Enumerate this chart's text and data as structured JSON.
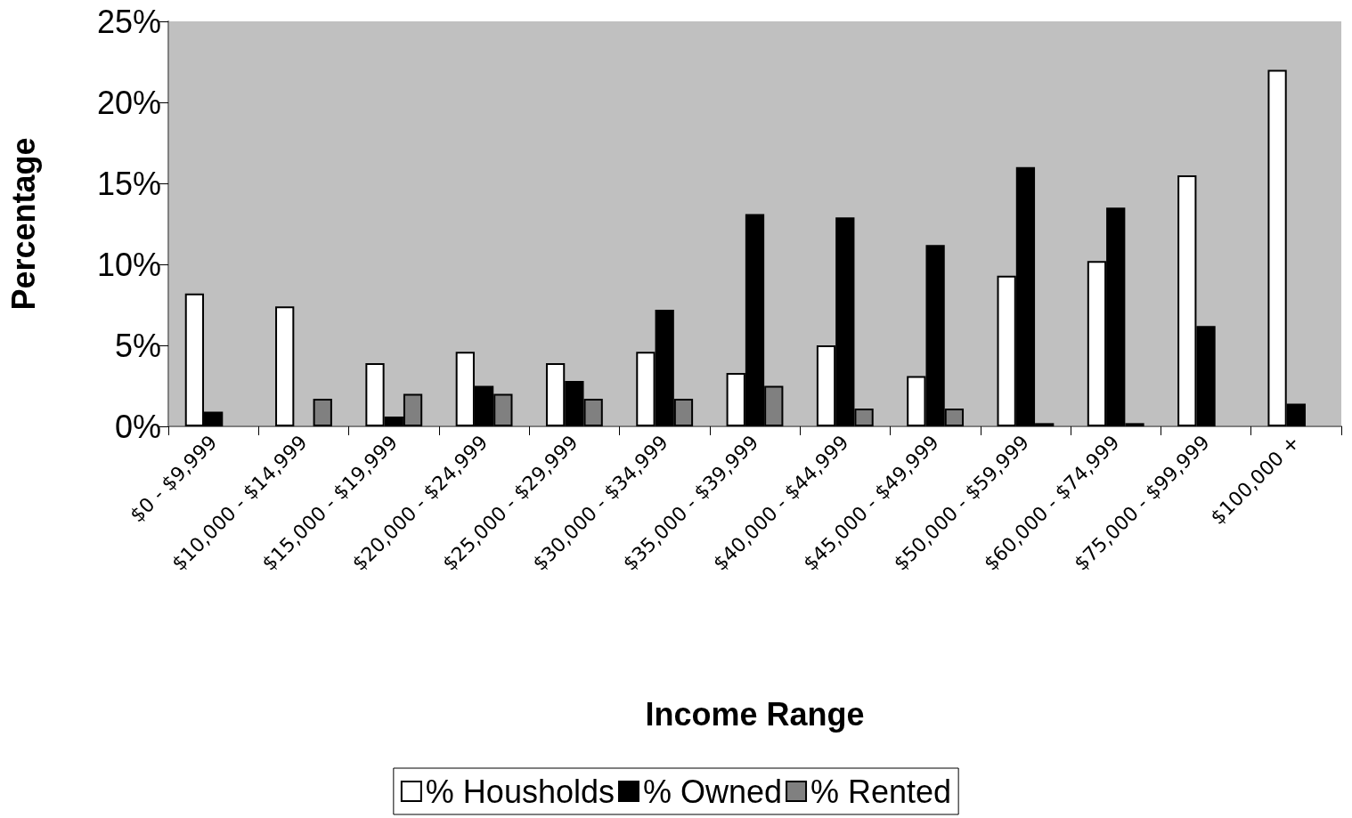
{
  "chart_data": {
    "type": "bar",
    "xlabel": "Income Range",
    "ylabel": "Percentage",
    "categories": [
      "$0 - $9,999",
      "$10,000 - $14,999",
      "$15,000 - $19,999",
      "$20,000 - $24,999",
      "$25,000 - $29,999",
      "$30,000 - $34,999",
      "$35,000 - $39,999",
      "$40,000 - $44,999",
      "$45,000 - $49,999",
      "$50,000 - $59,999",
      "$60,000 - $74,999",
      "$75,000 - $99,999",
      "$100,000 +"
    ],
    "series": [
      {
        "name": "% Housholds",
        "color": "#ffffff",
        "values": [
          8.2,
          7.4,
          3.9,
          4.6,
          3.9,
          4.6,
          3.3,
          5.0,
          3.1,
          9.3,
          10.2,
          15.5,
          22.0
        ]
      },
      {
        "name": "% Owned",
        "color": "#000000",
        "values": [
          0.9,
          0,
          0.6,
          2.5,
          2.8,
          7.2,
          13.1,
          12.9,
          11.2,
          16.0,
          13.5,
          6.2,
          1.4
        ]
      },
      {
        "name": "% Rented",
        "color": "#808080",
        "values": [
          0,
          1.7,
          2.0,
          2.0,
          1.7,
          1.7,
          2.5,
          1.1,
          1.1,
          0.2,
          0.2,
          0,
          0
        ]
      }
    ],
    "ylim": [
      0,
      25
    ],
    "yticks": [
      {
        "value": 0,
        "label": "0%"
      },
      {
        "value": 5,
        "label": "5%"
      },
      {
        "value": 10,
        "label": "10%"
      },
      {
        "value": 15,
        "label": "15%"
      },
      {
        "value": 20,
        "label": "20%"
      },
      {
        "value": 25,
        "label": "25%"
      }
    ],
    "grid": false,
    "legend": "bottom"
  }
}
